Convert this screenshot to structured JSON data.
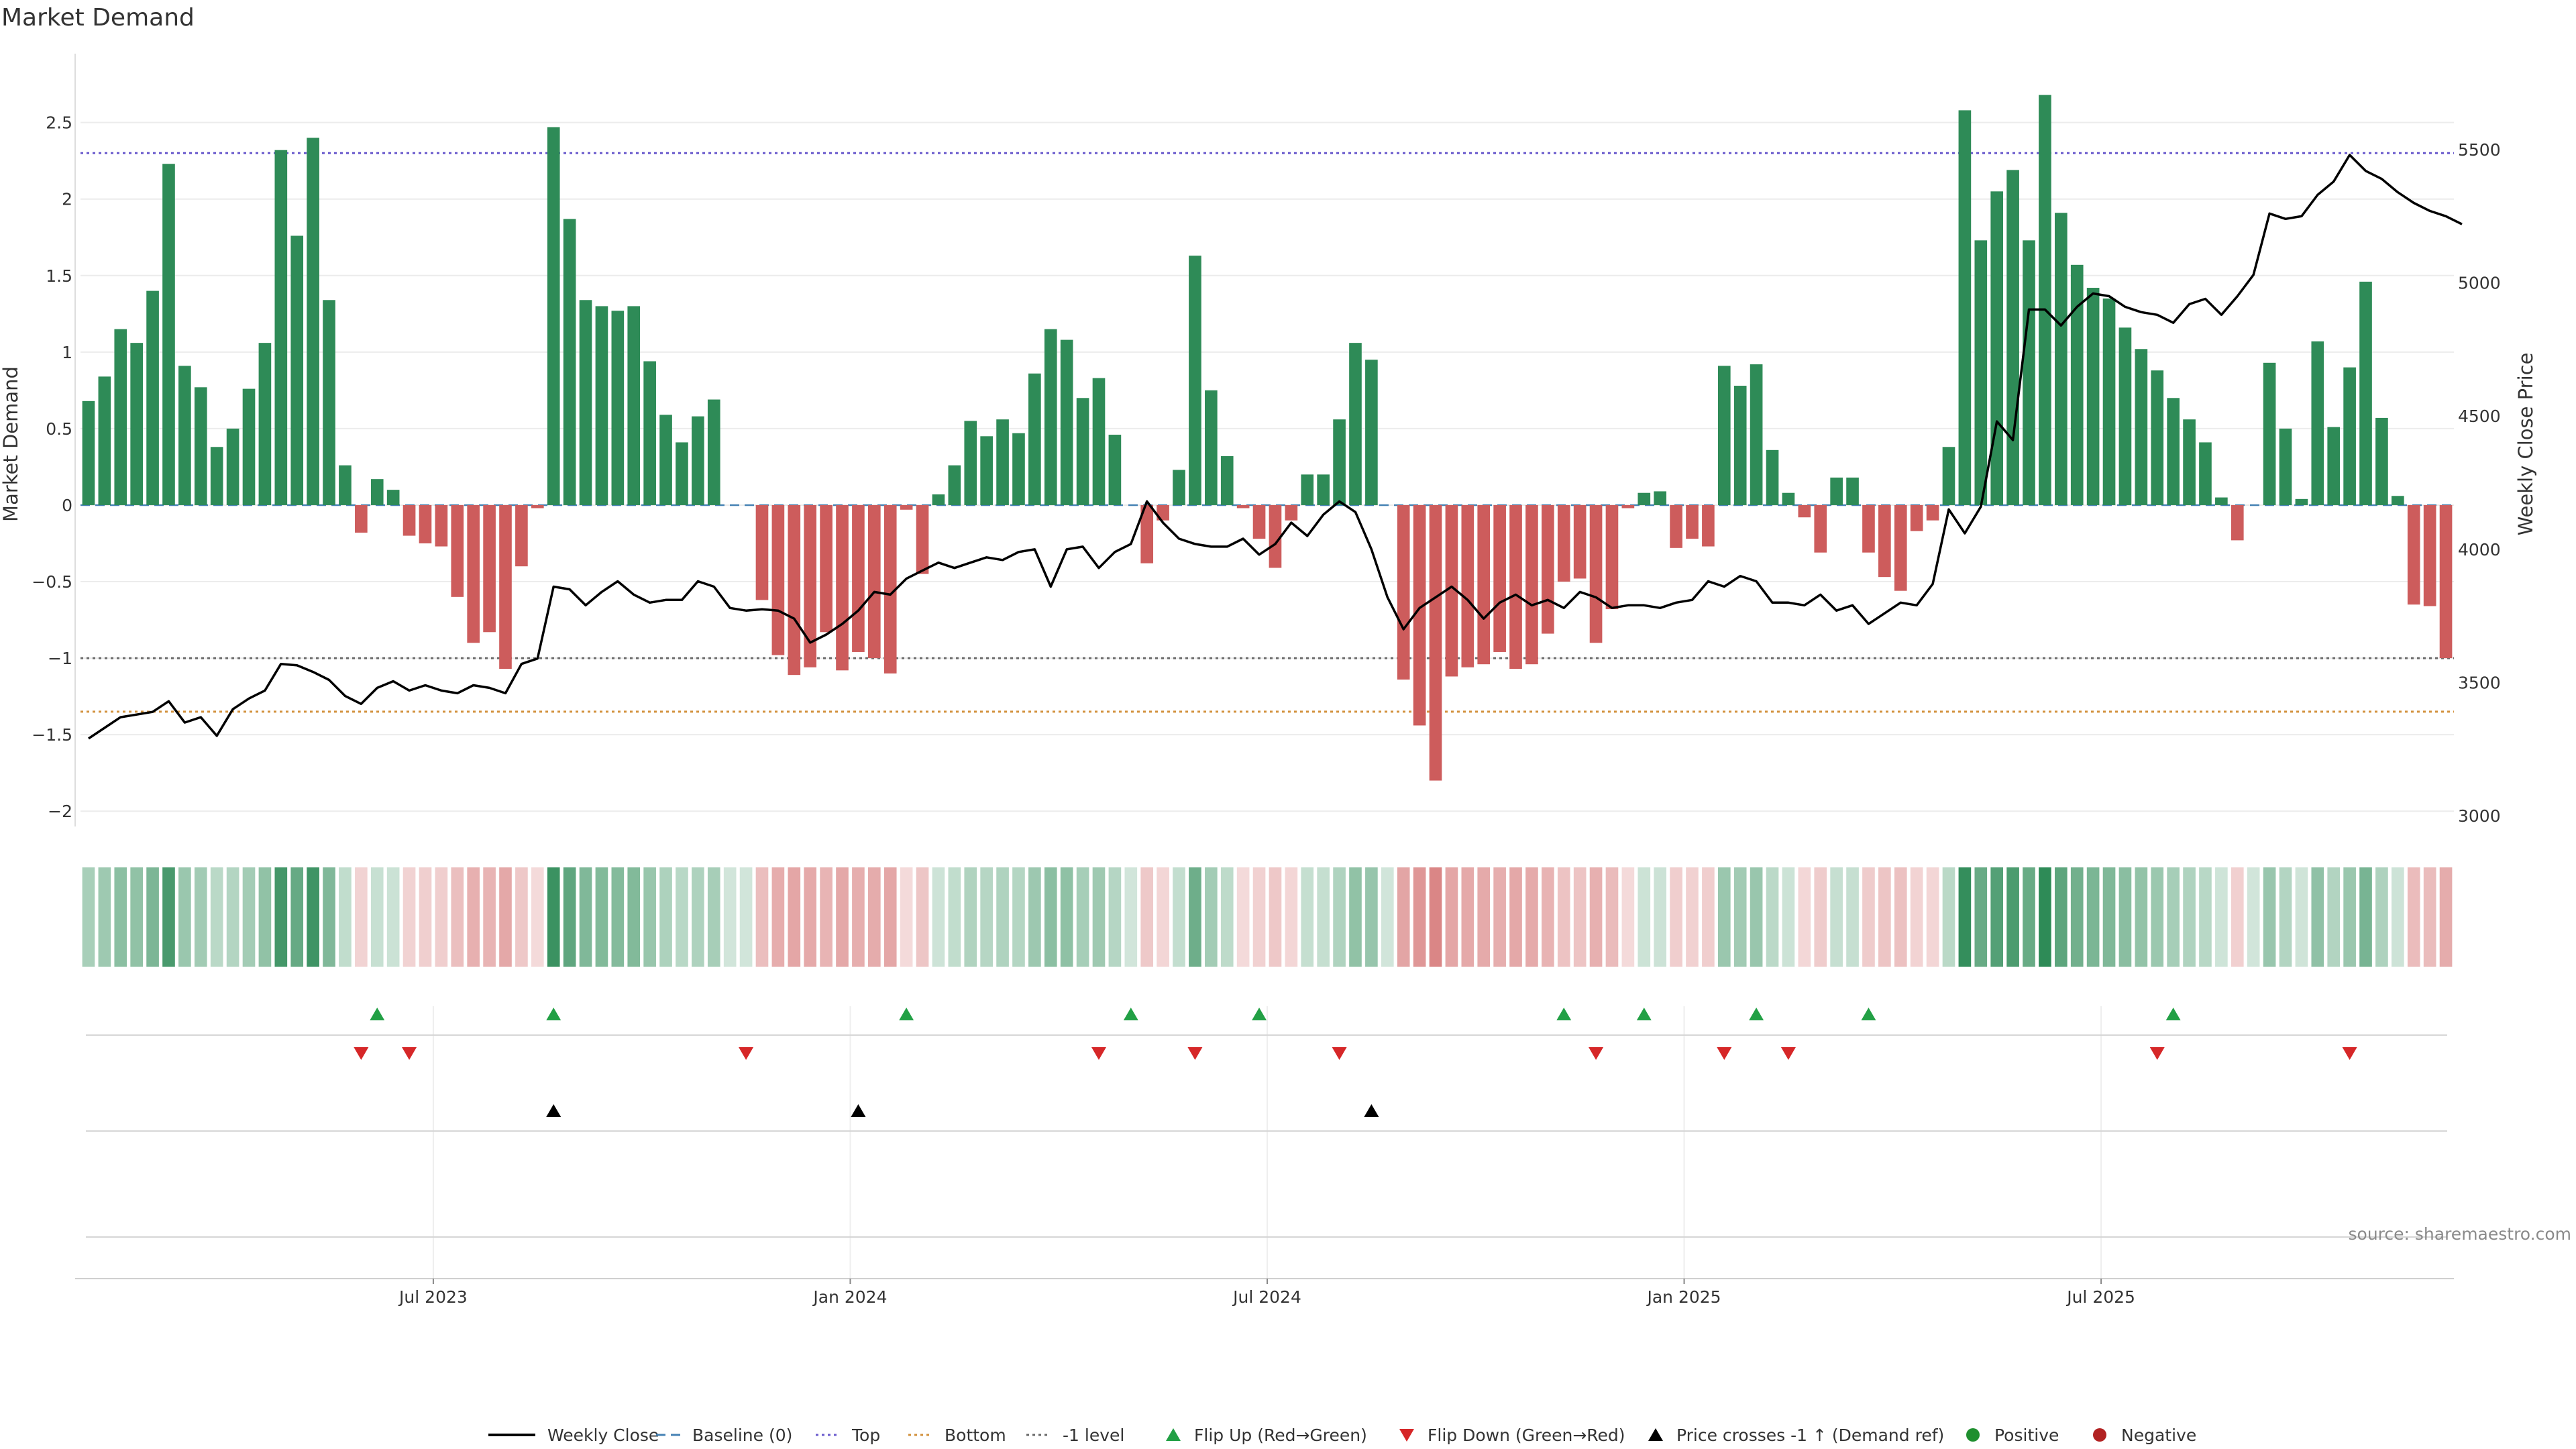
{
  "chart_data": {
    "type": "bar",
    "title": "Market Demand",
    "ylabel_left": "Market Demand",
    "ylabel_right": "Weekly Close Price",
    "ylim_left": [
      -2.1,
      2.95
    ],
    "ylim_right": [
      2960,
      5860
    ],
    "yticks_left": [
      2.5,
      2,
      1.5,
      1,
      0.5,
      0,
      -0.5,
      -1,
      -1.5,
      -2
    ],
    "ytick_labels_left": [
      "2.5",
      "2",
      "1.5",
      "1",
      "0.5",
      "0",
      "−0.5",
      "−1",
      "−1.5",
      "−2"
    ],
    "yticks_right": [
      3000,
      3500,
      4000,
      4500,
      5000,
      5500
    ],
    "ytick_labels_right": [
      "3000",
      "3500",
      "4000",
      "4500",
      "5000",
      "5500"
    ],
    "x_labels": [
      "Jul 2023",
      "Jan 2024",
      "Jul 2024",
      "Jan 2025",
      "Jul 2025"
    ],
    "x_label_week_index": [
      22,
      48,
      74,
      100,
      126
    ],
    "reference_lines": {
      "top": 2.3,
      "bottom": -1.35,
      "minus_one": -1.0
    },
    "demand_values": [
      0.68,
      0.84,
      1.15,
      1.06,
      1.4,
      2.23,
      0.91,
      0.77,
      0.38,
      0.5,
      0.76,
      1.06,
      2.32,
      1.76,
      2.4,
      1.34,
      0.26,
      -0.18,
      0.17,
      0.1,
      -0.2,
      -0.25,
      -0.27,
      -0.6,
      -0.9,
      -0.83,
      -1.07,
      -0.4,
      -0.02,
      2.47,
      1.87,
      1.34,
      1.3,
      1.27,
      1.3,
      0.94,
      0.59,
      0.41,
      0.58,
      0.69,
      0.0,
      0.0,
      -0.62,
      -0.98,
      -1.11,
      -1.06,
      -0.83,
      -1.08,
      -0.96,
      -1.0,
      -1.1,
      -0.03,
      -0.45,
      0.07,
      0.26,
      0.55,
      0.45,
      0.56,
      0.47,
      0.86,
      1.15,
      1.08,
      0.7,
      0.83,
      0.46,
      0.0,
      -0.38,
      -0.1,
      0.23,
      1.63,
      0.75,
      0.32,
      -0.02,
      -0.22,
      -0.41,
      -0.1,
      0.2,
      0.2,
      0.56,
      1.06,
      0.95,
      0.0,
      -1.14,
      -1.44,
      -1.8,
      -1.12,
      -1.06,
      -1.04,
      -0.96,
      -1.07,
      -1.04,
      -0.84,
      -0.5,
      -0.48,
      -0.9,
      -0.68,
      -0.02,
      0.08,
      0.09,
      -0.28,
      -0.22,
      -0.27,
      0.91,
      0.78,
      0.92,
      0.36,
      0.08,
      -0.08,
      -0.31,
      0.18,
      0.18,
      -0.31,
      -0.47,
      -0.56,
      -0.17,
      -0.1,
      0.38,
      2.58,
      1.73,
      2.05,
      2.19,
      1.73,
      2.68,
      1.91,
      1.57,
      1.42,
      1.35,
      1.16,
      1.02,
      0.88,
      0.7,
      0.56,
      0.41,
      0.05,
      -0.23,
      0.0,
      0.93,
      0.5,
      0.04,
      1.07,
      0.51,
      0.9,
      1.46,
      0.57,
      0.06,
      -0.65,
      -0.66,
      -1.0
    ],
    "weekly_close": [
      3290,
      3330,
      3370,
      3380,
      3390,
      3430,
      3350,
      3370,
      3300,
      3400,
      3440,
      3470,
      3570,
      3565,
      3540,
      3510,
      3450,
      3420,
      3480,
      3505,
      3470,
      3490,
      3470,
      3460,
      3490,
      3480,
      3460,
      3570,
      3590,
      3860,
      3850,
      3790,
      3840,
      3880,
      3830,
      3800,
      3810,
      3810,
      3880,
      3860,
      3780,
      3770,
      3775,
      3770,
      3740,
      3650,
      3680,
      3720,
      3770,
      3840,
      3830,
      3890,
      3920,
      3950,
      3930,
      3950,
      3970,
      3960,
      3990,
      4000,
      3860,
      4000,
      4010,
      3930,
      3990,
      4020,
      4180,
      4100,
      4040,
      4020,
      4010,
      4010,
      4040,
      3980,
      4020,
      4100,
      4050,
      4130,
      4180,
      4140,
      4000,
      3820,
      3700,
      3780,
      3820,
      3860,
      3810,
      3740,
      3800,
      3830,
      3790,
      3810,
      3780,
      3840,
      3820,
      3780,
      3790,
      3790,
      3780,
      3800,
      3810,
      3880,
      3860,
      3900,
      3880,
      3800,
      3800,
      3790,
      3830,
      3770,
      3790,
      3720,
      3760,
      3800,
      3790,
      3870,
      4150,
      4060,
      4160,
      4480,
      4410,
      4900,
      4900,
      4840,
      4910,
      4960,
      4950,
      4910,
      4890,
      4880,
      4850,
      4920,
      4940,
      4880,
      4950,
      5030,
      5260,
      5240,
      5250,
      5330,
      5380,
      5480,
      5420,
      5390,
      5340,
      5300,
      5270,
      5250,
      5220
    ],
    "flip_up_weeks": [
      18,
      29,
      51,
      65,
      73,
      92,
      97,
      104,
      111,
      130
    ],
    "flip_down_weeks": [
      17,
      20,
      41,
      63,
      69,
      78,
      94,
      102,
      106,
      129,
      141
    ],
    "price_cross_weeks": [
      29,
      48,
      80
    ],
    "legend": [
      "Weekly Close",
      "Baseline (0)",
      "Top",
      "Bottom",
      "-1 level",
      "Flip Up (Red→Green)",
      "Flip Down (Green→Red)",
      "Price crosses -1 ↑ (Demand ref)",
      "Positive",
      "Negative"
    ],
    "source": "source: sharemaestro.com"
  },
  "colors": {
    "positive": "#2e8b57",
    "negative": "#cd5c5c",
    "price_line": "#000000",
    "baseline": "#4682b4",
    "top": "#6a5acd",
    "bottom": "#d2913c",
    "minus_one": "#696969",
    "flip_up": "#22a045",
    "flip_down": "#d62728",
    "cross": "#000000",
    "positive_dot": "#1f8f2f",
    "negative_dot": "#b22222"
  }
}
